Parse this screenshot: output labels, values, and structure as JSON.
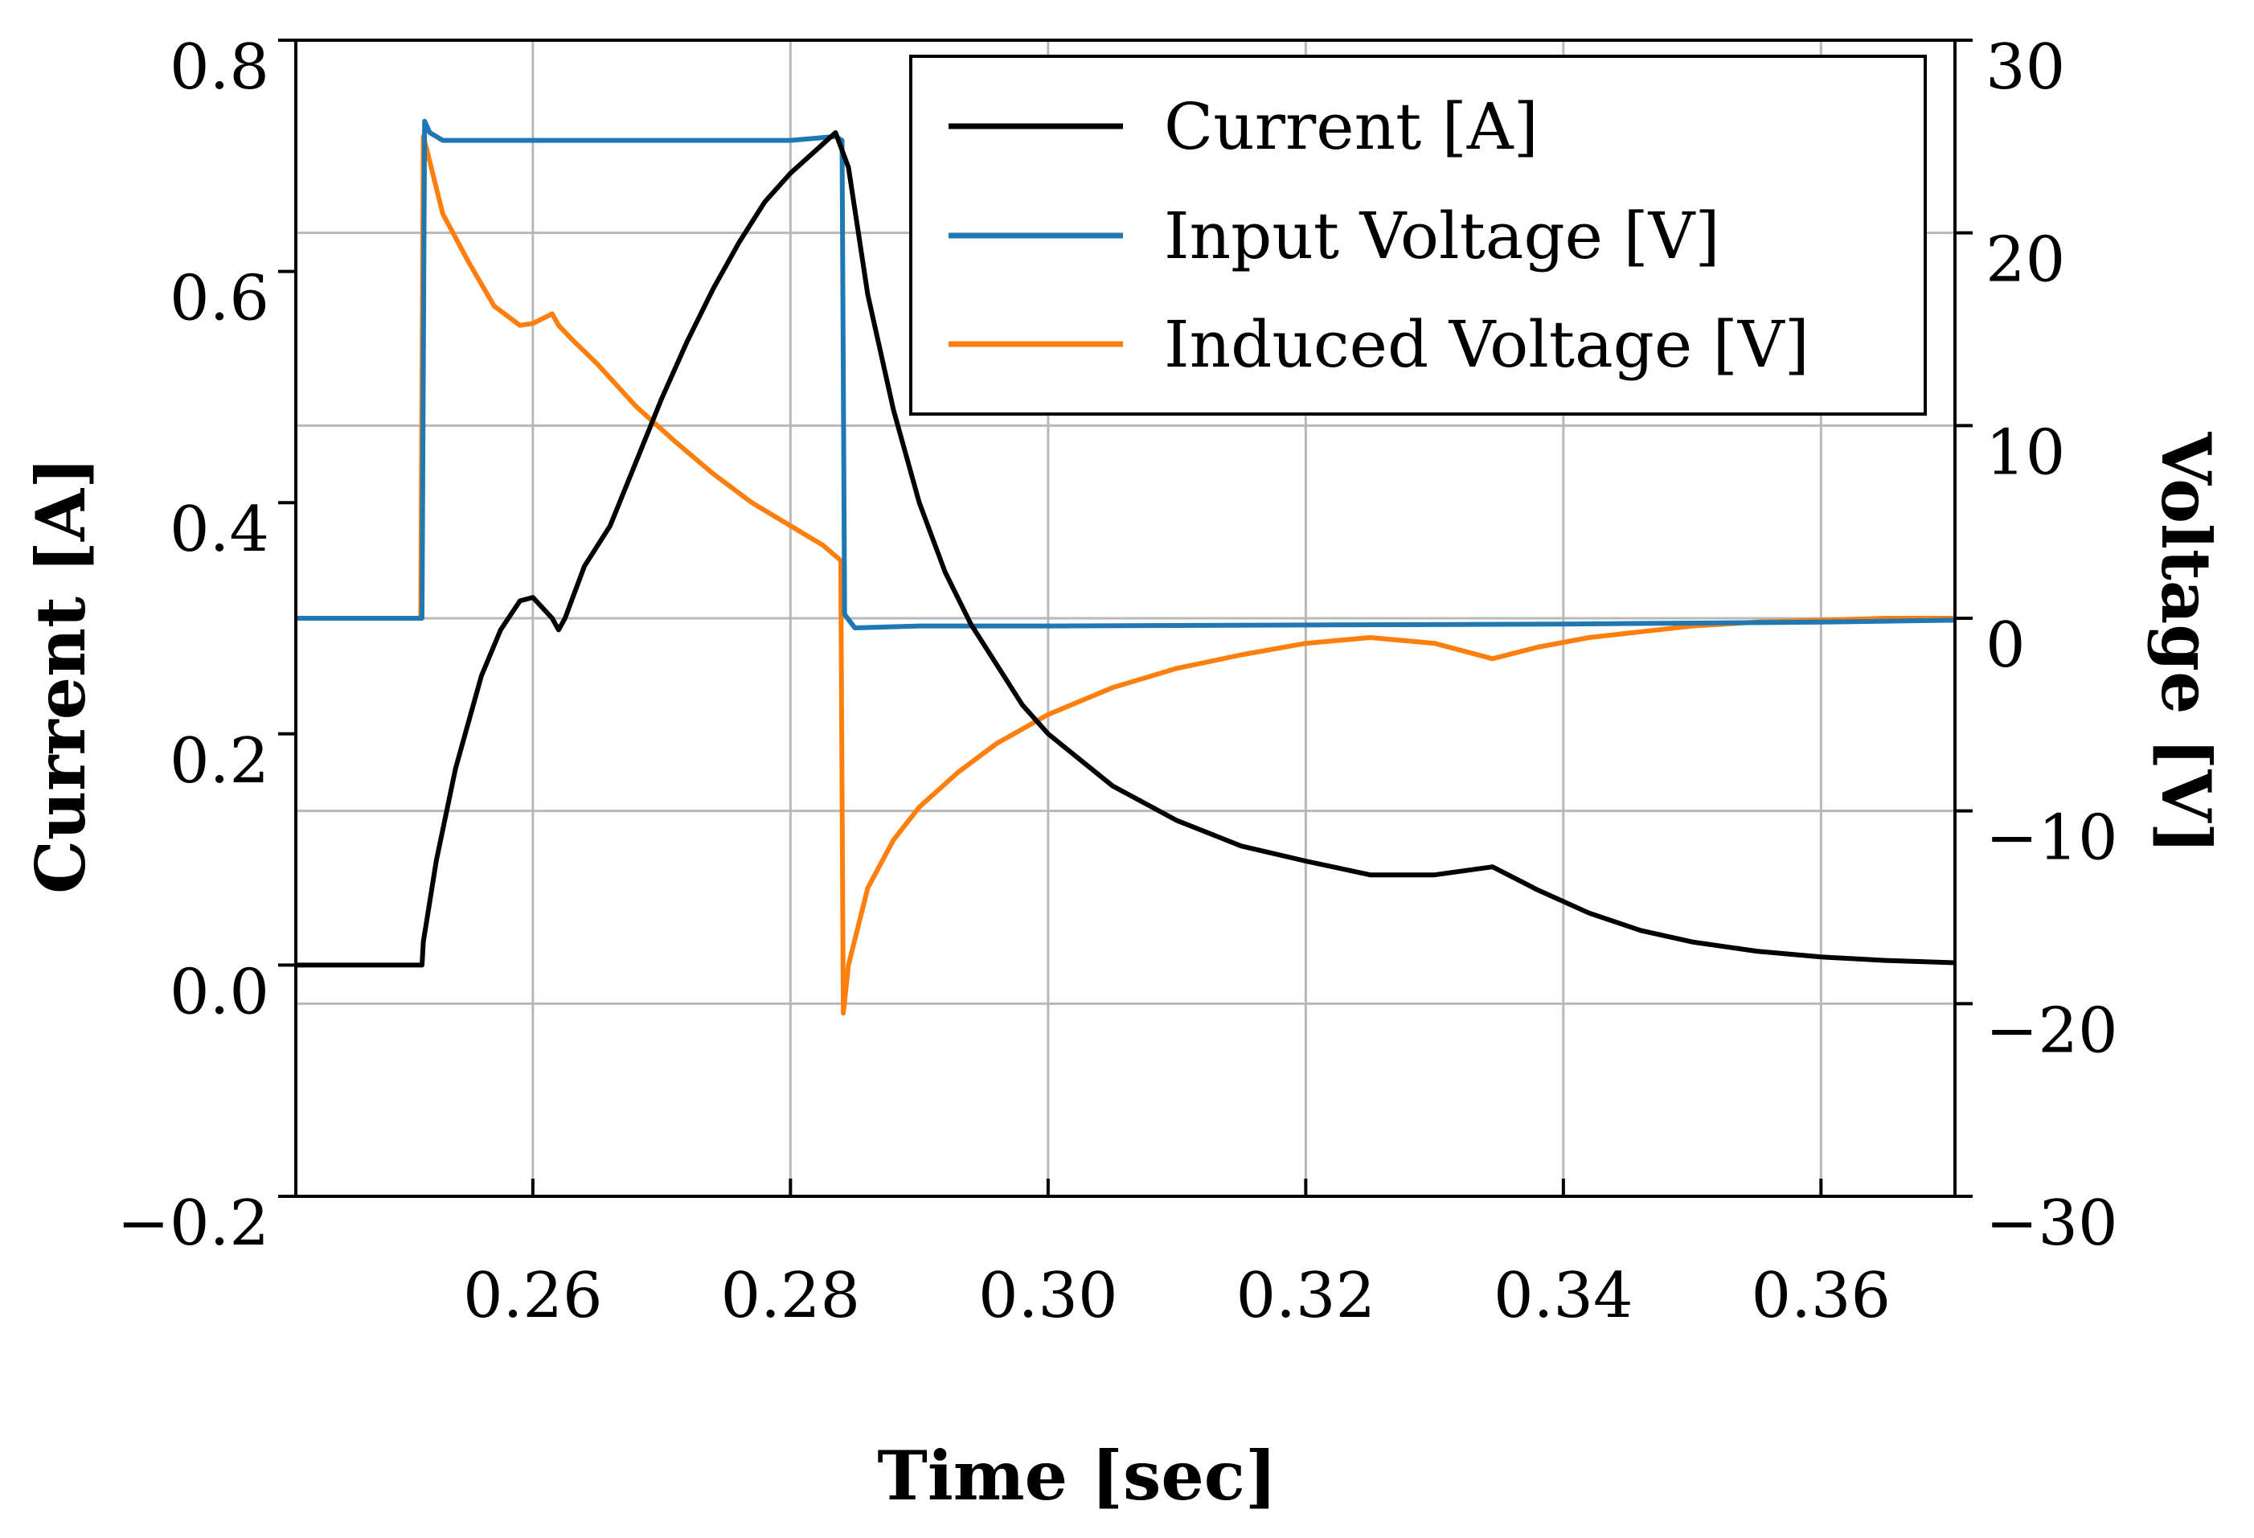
{
  "chart_data": {
    "type": "line",
    "title": "",
    "xlabel": "Time [sec]",
    "ylabel_left": "Current [A]",
    "ylabel_right": "Voltage [V]",
    "xlim": [
      0.2416,
      0.3704
    ],
    "ylim_left": [
      -0.2,
      0.8
    ],
    "ylim_right": [
      -30,
      30
    ],
    "x_ticks": [
      0.26,
      0.28,
      0.3,
      0.32,
      0.34,
      0.36
    ],
    "x_tick_labels": [
      "0.26",
      "0.28",
      "0.30",
      "0.32",
      "0.34",
      "0.36"
    ],
    "y_left_ticks": [
      -0.2,
      0.0,
      0.2,
      0.4,
      0.6,
      0.8
    ],
    "y_left_tick_labels": [
      "−0.2",
      "0.0",
      "0.2",
      "0.4",
      "0.6",
      "0.8"
    ],
    "y_right_ticks": [
      -30,
      -20,
      -10,
      0,
      10,
      20,
      30
    ],
    "y_right_tick_labels": [
      "−30",
      "−20",
      "−10",
      "0",
      "10",
      "20",
      "30"
    ],
    "grid": true,
    "legend_position": "top-right",
    "series": [
      {
        "name": "Current [A]",
        "axis": "left",
        "color": "#000000",
        "x": [
          0.2416,
          0.2514,
          0.2515,
          0.2525,
          0.254,
          0.256,
          0.2575,
          0.259,
          0.26,
          0.2615,
          0.262,
          0.2625,
          0.264,
          0.266,
          0.268,
          0.27,
          0.272,
          0.274,
          0.276,
          0.278,
          0.28,
          0.282,
          0.2835,
          0.2845,
          0.286,
          0.288,
          0.29,
          0.292,
          0.294,
          0.296,
          0.298,
          0.3,
          0.305,
          0.31,
          0.315,
          0.32,
          0.325,
          0.33,
          0.3345,
          0.338,
          0.342,
          0.346,
          0.35,
          0.355,
          0.36,
          0.365,
          0.3704
        ],
        "y": [
          0.0,
          0.0,
          0.02,
          0.09,
          0.17,
          0.25,
          0.29,
          0.315,
          0.318,
          0.3,
          0.29,
          0.3,
          0.345,
          0.38,
          0.435,
          0.49,
          0.54,
          0.585,
          0.625,
          0.66,
          0.685,
          0.705,
          0.72,
          0.69,
          0.58,
          0.48,
          0.4,
          0.34,
          0.295,
          0.26,
          0.225,
          0.2,
          0.155,
          0.125,
          0.103,
          0.09,
          0.078,
          0.078,
          0.085,
          0.065,
          0.045,
          0.03,
          0.02,
          0.012,
          0.007,
          0.004,
          0.002
        ]
      },
      {
        "name": "Input Voltage [V]",
        "axis": "right",
        "color": "#1f77b4",
        "x": [
          0.2416,
          0.2514,
          0.2516,
          0.252,
          0.253,
          0.26,
          0.27,
          0.28,
          0.2835,
          0.284,
          0.2842,
          0.285,
          0.29,
          0.3,
          0.32,
          0.34,
          0.36,
          0.3704
        ],
        "y": [
          0.0,
          0.0,
          25.8,
          25.2,
          24.8,
          24.8,
          24.8,
          24.8,
          25.0,
          24.8,
          0.2,
          -0.5,
          -0.4,
          -0.4,
          -0.35,
          -0.3,
          -0.2,
          -0.1
        ]
      },
      {
        "name": "Induced Voltage [V]",
        "axis": "right",
        "color": "#ff7f0e",
        "x": [
          0.2416,
          0.2513,
          0.2515,
          0.2517,
          0.253,
          0.255,
          0.257,
          0.259,
          0.26,
          0.2615,
          0.262,
          0.263,
          0.265,
          0.268,
          0.271,
          0.274,
          0.277,
          0.28,
          0.2825,
          0.2839,
          0.2841,
          0.2845,
          0.286,
          0.288,
          0.29,
          0.293,
          0.296,
          0.3,
          0.305,
          0.31,
          0.315,
          0.32,
          0.325,
          0.33,
          0.3345,
          0.338,
          0.342,
          0.346,
          0.35,
          0.355,
          0.36,
          0.365,
          0.3704
        ],
        "y": [
          0.0,
          0.0,
          25.0,
          24.5,
          21.0,
          18.5,
          16.2,
          15.2,
          15.3,
          15.8,
          15.2,
          14.5,
          13.2,
          11.0,
          9.2,
          7.5,
          6.0,
          4.8,
          3.8,
          3.0,
          -20.5,
          -18.0,
          -14.0,
          -11.5,
          -9.8,
          -8.0,
          -6.5,
          -5.0,
          -3.6,
          -2.6,
          -1.9,
          -1.3,
          -1.0,
          -1.3,
          -2.1,
          -1.5,
          -1.0,
          -0.7,
          -0.4,
          -0.2,
          -0.1,
          0.0,
          0.0
        ]
      }
    ]
  }
}
